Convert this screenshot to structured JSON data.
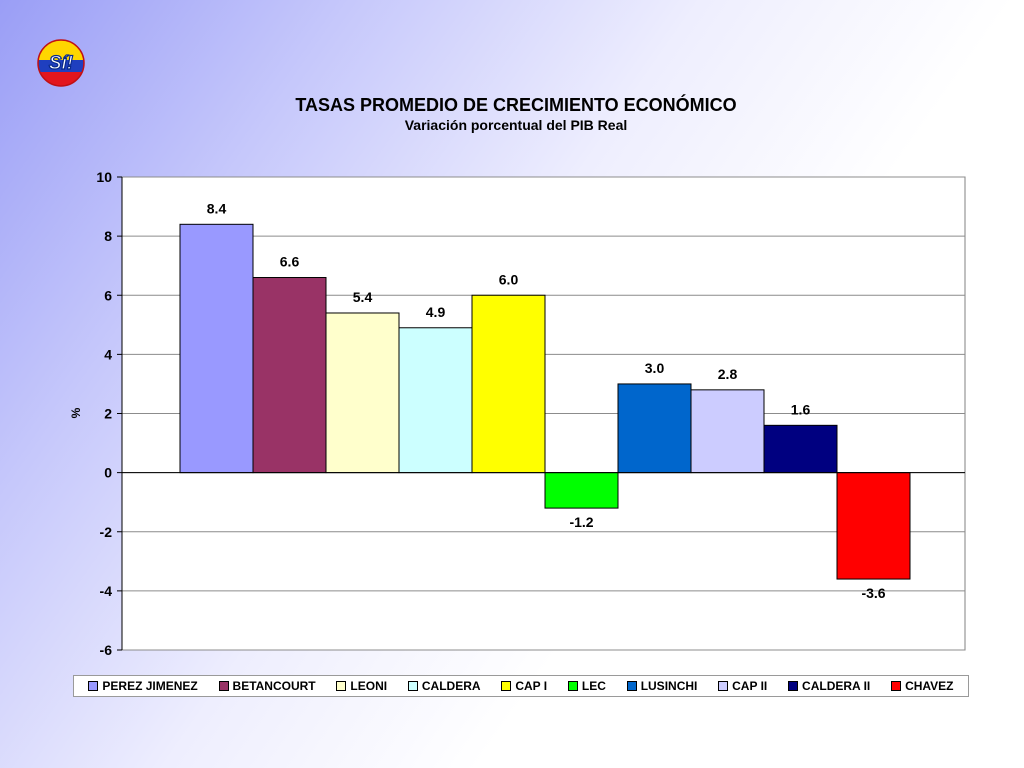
{
  "logo": {
    "text": "Sí!"
  },
  "chart_data": {
    "type": "bar",
    "title": "TASAS PROMEDIO DE CRECIMIENTO ECONÓMICO",
    "subtitle": "Variación porcentual del PIB Real",
    "ylabel": "%",
    "xlabel": "",
    "ylim": [
      -6,
      10
    ],
    "yticks": [
      "10",
      "8",
      "6",
      "4",
      "2",
      "0",
      "-2",
      "-4",
      "-6"
    ],
    "grid": true,
    "legend_position": "bottom",
    "series": [
      {
        "name": "PEREZ JIMENEZ",
        "value": 8.4,
        "label": "8.4",
        "color": "#9999ff"
      },
      {
        "name": "BETANCOURT",
        "value": 6.6,
        "label": "6.6",
        "color": "#993366"
      },
      {
        "name": "LEONI",
        "value": 5.4,
        "label": "5.4",
        "color": "#ffffcc"
      },
      {
        "name": "CALDERA",
        "value": 4.9,
        "label": "4.9",
        "color": "#ccffff"
      },
      {
        "name": "CAP I",
        "value": 6.0,
        "label": "6.0",
        "color": "#ffff00"
      },
      {
        "name": "LEC",
        "value": -1.2,
        "label": "-1.2",
        "color": "#00ff00"
      },
      {
        "name": "LUSINCHI",
        "value": 3.0,
        "label": "3.0",
        "color": "#0066cc"
      },
      {
        "name": "CAP II",
        "value": 2.8,
        "label": "2.8",
        "color": "#ccccff"
      },
      {
        "name": "CALDERA II",
        "value": 1.6,
        "label": "1.6",
        "color": "#000080"
      },
      {
        "name": "CHAVEZ",
        "value": -3.6,
        "label": "-3.6",
        "color": "#ff0000"
      }
    ]
  }
}
